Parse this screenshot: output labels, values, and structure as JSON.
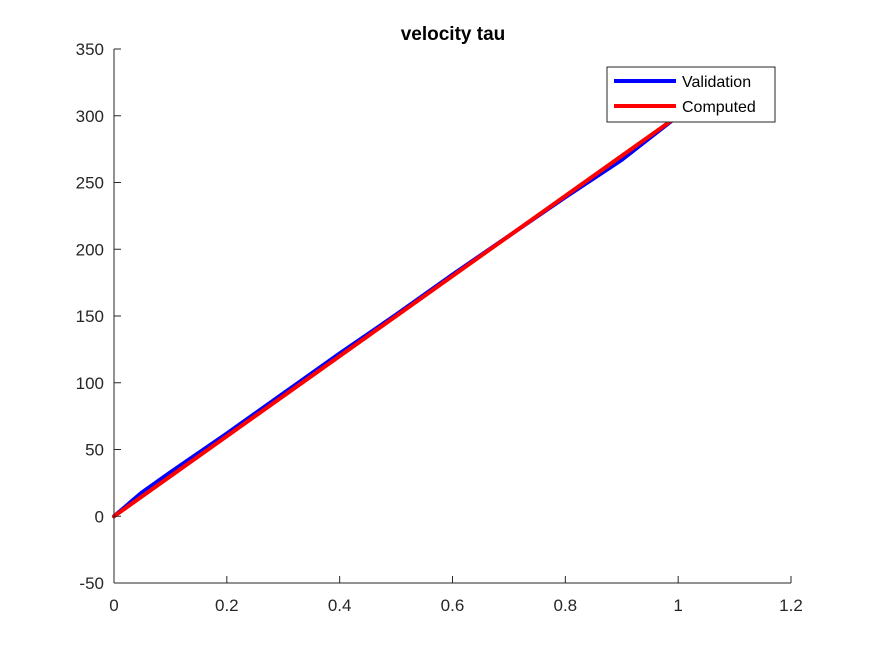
{
  "chart_data": {
    "type": "line",
    "title": "velocity tau",
    "xlabel": "",
    "ylabel": "",
    "xlim": [
      0,
      1.2
    ],
    "ylim": [
      -50,
      350
    ],
    "xticks": [
      0,
      0.2,
      0.4,
      0.6,
      0.8,
      1,
      1.2
    ],
    "xtick_labels": [
      "0",
      "0.2",
      "0.4",
      "0.6",
      "0.8",
      "1",
      "1.2"
    ],
    "yticks": [
      -50,
      0,
      50,
      100,
      150,
      200,
      250,
      300,
      350
    ],
    "ytick_labels": [
      "-50",
      "0",
      "50",
      "100",
      "150",
      "200",
      "250",
      "300",
      "350"
    ],
    "grid": false,
    "legend_position": "top-right",
    "series": [
      {
        "name": "Validation",
        "color": "#0000ff",
        "x": [
          0,
          0.05,
          0.1,
          0.2,
          0.3,
          0.4,
          0.5,
          0.6,
          0.7,
          0.8,
          0.9,
          1.0
        ],
        "y": [
          0,
          18,
          33,
          62,
          92,
          122,
          151,
          181,
          210,
          239,
          267,
          300
        ]
      },
      {
        "name": "Computed",
        "color": "#ff0000",
        "x": [
          0,
          1.0
        ],
        "y": [
          0,
          300
        ]
      }
    ]
  }
}
